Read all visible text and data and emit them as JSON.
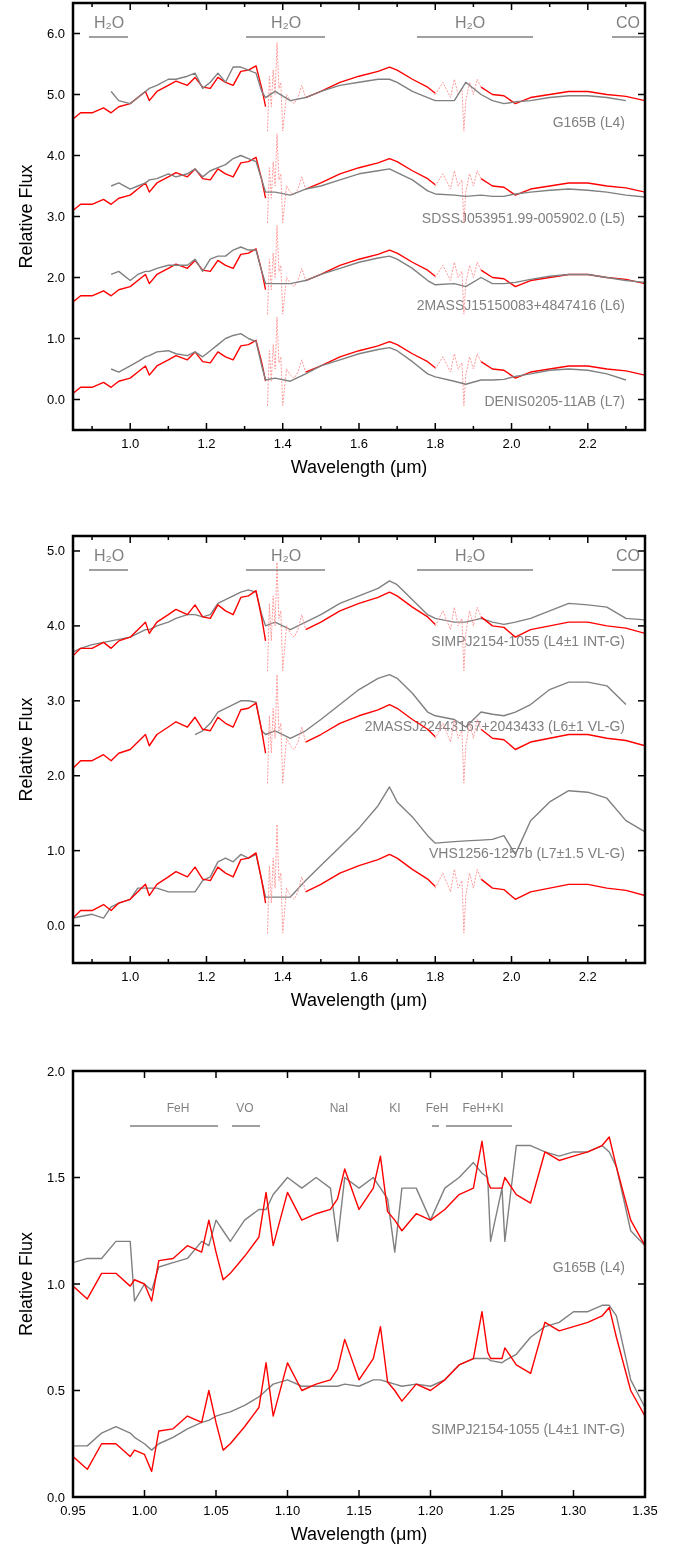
{
  "chart_data": [
    {
      "type": "line",
      "xlabel": "Wavelength (μm)",
      "ylabel": "Relative Flux",
      "xlim": [
        0.85,
        2.35
      ],
      "ylim": [
        -0.5,
        6.5
      ],
      "xticks": [
        {
          "value": 0.9,
          "label": null
        },
        {
          "value": 1.0,
          "label": "1.0"
        },
        {
          "value": 1.1,
          "label": null
        },
        {
          "value": 1.2,
          "label": "1.2"
        },
        {
          "value": 1.3,
          "label": null
        },
        {
          "value": 1.4,
          "label": "1.4"
        },
        {
          "value": 1.5,
          "label": null
        },
        {
          "value": 1.6,
          "label": "1.6"
        },
        {
          "value": 1.7,
          "label": null
        },
        {
          "value": 1.8,
          "label": "1.8"
        },
        {
          "value": 1.9,
          "label": null
        },
        {
          "value": 2.0,
          "label": "2.0"
        },
        {
          "value": 2.1,
          "label": null
        },
        {
          "value": 2.2,
          "label": "2.2"
        },
        {
          "value": 2.3,
          "label": null
        }
      ],
      "yticks": [
        {
          "value": 0,
          "label": "0.0"
        },
        {
          "value": 1,
          "label": "1.0"
        },
        {
          "value": 2,
          "label": "2.0"
        },
        {
          "value": 3,
          "label": "3.0"
        },
        {
          "value": 4,
          "label": "4.0"
        },
        {
          "value": 5,
          "label": "5.0"
        },
        {
          "value": 6,
          "label": "6.0"
        }
      ],
      "annotations": [
        "H₂O",
        "H₂O",
        "H₂O",
        "CO"
      ],
      "x": [
        0.85,
        0.87,
        0.9,
        0.93,
        0.95,
        0.97,
        1.0,
        1.02,
        1.04,
        1.05,
        1.07,
        1.1,
        1.12,
        1.15,
        1.17,
        1.19,
        1.21,
        1.23,
        1.25,
        1.27,
        1.29,
        1.31,
        1.33,
        1.345,
        1.355,
        1.38,
        1.42,
        1.46,
        1.5,
        1.55,
        1.6,
        1.65,
        1.68,
        1.7,
        1.74,
        1.78,
        1.8,
        1.85,
        1.88,
        1.92,
        1.95,
        1.98,
        2.01,
        2.05,
        2.1,
        2.15,
        2.2,
        2.25,
        2.3,
        2.35
      ],
      "series": [
        {
          "color": "#ff0000",
          "values": [
            4.6,
            4.7,
            4.7,
            4.78,
            4.7,
            4.8,
            4.85,
            4.95,
            5.05,
            4.9,
            5.05,
            5.15,
            5.22,
            5.15,
            5.28,
            5.12,
            5.1,
            5.28,
            5.2,
            5.15,
            5.38,
            5.4,
            5.47,
            5.1,
            4.8,
            null,
            null,
            4.95,
            5.05,
            5.2,
            5.3,
            5.38,
            5.45,
            5.4,
            5.25,
            5.12,
            5.02,
            null,
            null,
            5.12,
            5.0,
            4.98,
            4.85,
            4.95,
            5.0,
            5.05,
            5.05,
            5.0,
            4.97,
            4.9
          ]
        },
        {
          "color": "#ff9999",
          "line_style": "dotted",
          "x": [
            1.36,
            1.365,
            1.37,
            1.375,
            1.38,
            1.385,
            1.39,
            1.395,
            1.4,
            1.41,
            1.42,
            1.43,
            1.44,
            1.45,
            1.46,
            1.6,
            1.8,
            1.82,
            1.84,
            1.85,
            1.86,
            1.87,
            1.875,
            1.88,
            1.89,
            1.9,
            1.91,
            1.92
          ],
          "values": [
            4.4,
            5.3,
            4.8,
            5.4,
            5.0,
            5.85,
            5.1,
            5.2,
            4.4,
            5.0,
            4.9,
            4.85,
            4.95,
            5.15,
            4.95,
            null,
            5.0,
            5.2,
            4.95,
            5.25,
            5.0,
            5.1,
            4.4,
            4.9,
            5.2,
            5.0,
            5.25,
            5.12
          ]
        },
        {
          "name": "G165B (L4)",
          "color": "#808080",
          "values": [
            null,
            null,
            null,
            null,
            5.05,
            4.9,
            4.85,
            4.95,
            5.05,
            5.1,
            5.15,
            5.25,
            5.25,
            5.3,
            5.35,
            5.1,
            5.2,
            5.35,
            5.2,
            5.45,
            5.45,
            5.4,
            5.35,
            5.05,
            4.95,
            5.05,
            4.9,
            4.95,
            5.05,
            5.15,
            5.2,
            5.25,
            5.25,
            5.2,
            5.05,
            4.95,
            4.9,
            4.9,
            5.2,
            5.0,
            4.9,
            4.85,
            4.88,
            4.9,
            4.95,
            4.98,
            4.98,
            4.95,
            4.9,
            null
          ]
        },
        {
          "color": "#ff0000",
          "values": [
            3.1,
            3.2,
            3.2,
            3.28,
            3.2,
            3.3,
            3.35,
            3.45,
            3.55,
            3.4,
            3.55,
            3.65,
            3.72,
            3.65,
            3.78,
            3.62,
            3.6,
            3.78,
            3.7,
            3.65,
            3.88,
            3.9,
            3.97,
            3.6,
            3.3,
            null,
            null,
            3.45,
            3.55,
            3.7,
            3.8,
            3.88,
            3.95,
            3.9,
            3.75,
            3.62,
            3.52,
            null,
            null,
            3.62,
            3.5,
            3.48,
            3.35,
            3.45,
            3.5,
            3.55,
            3.55,
            3.5,
            3.47,
            3.4
          ]
        },
        {
          "color": "#ff9999",
          "line_style": "dotted",
          "x": [
            1.36,
            1.365,
            1.37,
            1.375,
            1.38,
            1.385,
            1.39,
            1.395,
            1.4,
            1.41,
            1.42,
            1.43,
            1.44,
            1.45,
            1.46,
            1.6,
            1.8,
            1.82,
            1.84,
            1.85,
            1.86,
            1.87,
            1.875,
            1.88,
            1.89,
            1.9,
            1.91,
            1.92
          ],
          "values": [
            2.9,
            3.8,
            3.3,
            3.9,
            3.5,
            4.35,
            3.6,
            3.7,
            2.9,
            3.5,
            3.4,
            3.35,
            3.45,
            3.65,
            3.45,
            null,
            3.5,
            3.7,
            3.45,
            3.75,
            3.5,
            3.6,
            2.9,
            3.4,
            3.7,
            3.5,
            3.75,
            3.62
          ]
        },
        {
          "name": "SDSSJ053951.99-005902.0 (L5)",
          "color": "#808080",
          "values": [
            null,
            null,
            null,
            null,
            3.5,
            3.55,
            3.45,
            3.5,
            3.55,
            3.6,
            3.62,
            3.7,
            3.65,
            3.7,
            3.78,
            3.65,
            3.75,
            3.8,
            3.85,
            3.95,
            4.0,
            3.95,
            3.9,
            3.6,
            3.4,
            3.4,
            3.35,
            3.45,
            3.5,
            3.6,
            3.7,
            3.75,
            3.78,
            3.72,
            3.6,
            3.42,
            3.37,
            3.35,
            3.33,
            3.35,
            3.33,
            3.33,
            3.37,
            3.4,
            3.43,
            3.45,
            3.43,
            3.4,
            3.35,
            3.32
          ]
        },
        {
          "color": "#ff0000",
          "values": [
            1.6,
            1.7,
            1.7,
            1.78,
            1.7,
            1.8,
            1.85,
            1.95,
            2.05,
            1.9,
            2.05,
            2.15,
            2.22,
            2.15,
            2.28,
            2.12,
            2.1,
            2.28,
            2.2,
            2.15,
            2.38,
            2.4,
            2.47,
            2.1,
            1.8,
            null,
            null,
            1.95,
            2.05,
            2.2,
            2.3,
            2.38,
            2.45,
            2.4,
            2.25,
            2.12,
            2.02,
            null,
            null,
            2.12,
            2.0,
            1.98,
            1.85,
            1.95,
            2.0,
            2.05,
            2.05,
            2.0,
            1.97,
            1.9
          ]
        },
        {
          "color": "#ff9999",
          "line_style": "dotted",
          "x": [
            1.36,
            1.365,
            1.37,
            1.375,
            1.38,
            1.385,
            1.39,
            1.395,
            1.4,
            1.41,
            1.42,
            1.43,
            1.44,
            1.45,
            1.46,
            1.6,
            1.8,
            1.82,
            1.84,
            1.85,
            1.86,
            1.87,
            1.875,
            1.88,
            1.89,
            1.9,
            1.91,
            1.92
          ],
          "values": [
            1.4,
            2.3,
            1.8,
            2.4,
            2.0,
            2.85,
            2.1,
            2.2,
            1.4,
            2.0,
            1.9,
            1.85,
            1.95,
            2.15,
            1.95,
            null,
            2.0,
            2.2,
            1.95,
            2.25,
            2.0,
            2.1,
            1.4,
            1.9,
            2.2,
            2.0,
            2.25,
            2.12
          ]
        },
        {
          "name": "2MASSJ15150083+4847416 (L6)",
          "color": "#808080",
          "values": [
            null,
            null,
            null,
            null,
            2.05,
            2.1,
            1.95,
            2.05,
            2.1,
            2.1,
            2.15,
            2.2,
            2.2,
            2.2,
            2.3,
            2.1,
            2.3,
            2.35,
            2.35,
            2.45,
            2.5,
            2.45,
            2.45,
            2.1,
            1.9,
            1.9,
            1.9,
            1.95,
            2.05,
            2.15,
            2.25,
            2.32,
            2.35,
            2.3,
            2.15,
            1.95,
            1.88,
            1.9,
            1.85,
            2.0,
            1.9,
            1.9,
            1.92,
            1.97,
            2.02,
            2.05,
            2.05,
            2.0,
            1.95,
            1.92
          ]
        },
        {
          "color": "#ff0000",
          "values": [
            0.1,
            0.2,
            0.2,
            0.28,
            0.2,
            0.3,
            0.35,
            0.45,
            0.55,
            0.4,
            0.55,
            0.65,
            0.72,
            0.65,
            0.78,
            0.62,
            0.6,
            0.78,
            0.7,
            0.65,
            0.88,
            0.9,
            0.97,
            0.6,
            0.3,
            null,
            null,
            0.45,
            0.55,
            0.7,
            0.8,
            0.88,
            0.95,
            0.9,
            0.75,
            0.62,
            0.52,
            null,
            null,
            0.62,
            0.5,
            0.48,
            0.35,
            0.45,
            0.5,
            0.55,
            0.55,
            0.5,
            0.47,
            0.4
          ]
        },
        {
          "color": "#ff9999",
          "line_style": "dotted",
          "x": [
            1.36,
            1.365,
            1.37,
            1.375,
            1.38,
            1.385,
            1.39,
            1.395,
            1.4,
            1.41,
            1.42,
            1.43,
            1.44,
            1.45,
            1.46,
            1.6,
            1.8,
            1.82,
            1.84,
            1.85,
            1.86,
            1.87,
            1.875,
            1.88,
            1.89,
            1.9,
            1.91,
            1.92
          ],
          "values": [
            -0.1,
            0.8,
            0.3,
            0.9,
            0.5,
            1.35,
            0.6,
            0.7,
            -0.1,
            0.5,
            0.4,
            0.35,
            0.45,
            0.65,
            0.45,
            null,
            0.5,
            0.7,
            0.45,
            0.75,
            0.5,
            0.6,
            -0.1,
            0.4,
            0.7,
            0.5,
            0.75,
            0.62
          ]
        },
        {
          "name": "DENIS0205-11AB (L7)",
          "color": "#808080",
          "values": [
            null,
            null,
            null,
            null,
            0.5,
            0.45,
            0.55,
            0.62,
            0.7,
            0.72,
            0.78,
            0.8,
            0.75,
            0.72,
            0.78,
            0.7,
            0.8,
            0.9,
            1.0,
            1.05,
            1.08,
            1.0,
            0.95,
            0.55,
            0.32,
            0.35,
            0.3,
            0.42,
            0.55,
            0.65,
            0.75,
            0.82,
            0.85,
            0.8,
            0.62,
            0.42,
            0.37,
            0.3,
            0.25,
            0.32,
            0.32,
            0.33,
            0.38,
            0.42,
            0.48,
            0.5,
            0.48,
            0.42,
            0.32,
            null
          ]
        }
      ]
    },
    {
      "type": "line",
      "xlabel": "Wavelength (μm)",
      "ylabel": "Relative Flux",
      "xlim": [
        0.85,
        2.35
      ],
      "ylim": [
        -0.5,
        5.2
      ],
      "xticks": [
        {
          "value": 0.9,
          "label": null
        },
        {
          "value": 1.0,
          "label": "1.0"
        },
        {
          "value": 1.1,
          "label": null
        },
        {
          "value": 1.2,
          "label": "1.2"
        },
        {
          "value": 1.3,
          "label": null
        },
        {
          "value": 1.4,
          "label": "1.4"
        },
        {
          "value": 1.5,
          "label": null
        },
        {
          "value": 1.6,
          "label": "1.6"
        },
        {
          "value": 1.7,
          "label": null
        },
        {
          "value": 1.8,
          "label": "1.8"
        },
        {
          "value": 1.9,
          "label": null
        },
        {
          "value": 2.0,
          "label": "2.0"
        },
        {
          "value": 2.1,
          "label": null
        },
        {
          "value": 2.2,
          "label": "2.2"
        },
        {
          "value": 2.3,
          "label": null
        }
      ],
      "yticks": [
        {
          "value": 0,
          "label": "0.0"
        },
        {
          "value": 1,
          "label": "1.0"
        },
        {
          "value": 2,
          "label": "2.0"
        },
        {
          "value": 3,
          "label": "3.0"
        },
        {
          "value": 4,
          "label": "4.0"
        },
        {
          "value": 5,
          "label": "5.0"
        }
      ],
      "annotations": [
        "H₂O",
        "H₂O",
        "H₂O",
        "CO"
      ],
      "x": [
        0.85,
        0.87,
        0.9,
        0.93,
        0.95,
        0.97,
        1.0,
        1.02,
        1.04,
        1.05,
        1.07,
        1.1,
        1.12,
        1.15,
        1.17,
        1.19,
        1.21,
        1.23,
        1.25,
        1.27,
        1.29,
        1.31,
        1.33,
        1.345,
        1.355,
        1.38,
        1.42,
        1.46,
        1.5,
        1.55,
        1.6,
        1.65,
        1.68,
        1.7,
        1.74,
        1.78,
        1.8,
        1.85,
        1.88,
        1.92,
        1.95,
        1.98,
        2.01,
        2.05,
        2.1,
        2.15,
        2.2,
        2.25,
        2.3,
        2.35
      ],
      "series": [
        {
          "name": "SIMPJ2154-1055 (L4±1 INT-G)",
          "color": "#808080",
          "values": [
            3.65,
            3.7,
            3.75,
            3.78,
            3.8,
            3.82,
            3.85,
            3.9,
            3.95,
            3.95,
            4.0,
            4.05,
            4.1,
            4.15,
            4.15,
            4.12,
            4.15,
            4.3,
            4.35,
            4.4,
            4.45,
            4.48,
            4.45,
            4.15,
            4.0,
            4.05,
            3.95,
            4.05,
            4.15,
            4.3,
            4.4,
            4.5,
            4.6,
            4.55,
            4.35,
            4.15,
            4.1,
            4.05,
            4.05,
            4.1,
            4.05,
            4.02,
            4.05,
            4.1,
            4.2,
            4.3,
            4.28,
            4.25,
            4.1,
            4.08
          ]
        },
        {
          "color": "#ff0000",
          "values": [
            3.6,
            3.7,
            3.7,
            3.78,
            3.7,
            3.8,
            3.85,
            3.95,
            4.05,
            3.9,
            4.05,
            4.15,
            4.22,
            4.15,
            4.28,
            4.12,
            4.1,
            4.28,
            4.2,
            4.15,
            4.38,
            4.4,
            4.47,
            4.1,
            3.8,
            null,
            null,
            3.95,
            4.05,
            4.2,
            4.3,
            4.38,
            4.45,
            4.4,
            4.25,
            4.12,
            4.02,
            null,
            null,
            4.12,
            4.0,
            3.98,
            3.85,
            3.95,
            4.0,
            4.05,
            4.05,
            4.0,
            3.97,
            3.9
          ]
        },
        {
          "color": "#ff9999",
          "line_style": "dotted",
          "x": [
            1.36,
            1.365,
            1.37,
            1.375,
            1.38,
            1.385,
            1.39,
            1.395,
            1.4,
            1.41,
            1.42,
            1.43,
            1.44,
            1.45,
            1.46,
            1.6,
            1.8,
            1.82,
            1.84,
            1.85,
            1.86,
            1.87,
            1.875,
            1.88,
            1.89,
            1.9,
            1.91,
            1.92
          ],
          "values": [
            3.4,
            4.3,
            3.8,
            4.4,
            4.0,
            4.85,
            4.1,
            4.2,
            3.4,
            4.0,
            3.9,
            3.85,
            3.95,
            4.15,
            3.95,
            null,
            4.0,
            4.2,
            3.95,
            4.25,
            4.0,
            4.1,
            3.4,
            3.9,
            4.2,
            4.0,
            4.25,
            4.12
          ]
        },
        {
          "name": "2MASSJ22443167+2043433 (L6±1 VL-G)",
          "color": "#808080",
          "values": [
            null,
            null,
            null,
            null,
            null,
            null,
            null,
            null,
            null,
            null,
            null,
            null,
            null,
            null,
            2.55,
            2.6,
            2.7,
            2.85,
            2.9,
            2.95,
            3.0,
            3.0,
            2.98,
            2.6,
            2.55,
            2.6,
            2.5,
            2.6,
            2.75,
            2.95,
            3.15,
            3.3,
            3.35,
            3.3,
            3.1,
            2.85,
            2.8,
            2.75,
            2.65,
            2.85,
            2.82,
            2.8,
            2.85,
            2.95,
            3.15,
            3.25,
            3.25,
            3.2,
            2.95,
            null
          ]
        },
        {
          "color": "#ff0000",
          "values": [
            2.1,
            2.2,
            2.2,
            2.28,
            2.2,
            2.3,
            2.35,
            2.45,
            2.55,
            2.4,
            2.55,
            2.65,
            2.72,
            2.65,
            2.78,
            2.62,
            2.6,
            2.78,
            2.7,
            2.65,
            2.88,
            2.9,
            2.97,
            2.6,
            2.3,
            null,
            null,
            2.45,
            2.55,
            2.7,
            2.8,
            2.88,
            2.95,
            2.9,
            2.75,
            2.62,
            2.52,
            null,
            null,
            2.62,
            2.5,
            2.48,
            2.35,
            2.45,
            2.5,
            2.55,
            2.55,
            2.5,
            2.47,
            2.4
          ]
        },
        {
          "color": "#ff9999",
          "line_style": "dotted",
          "x": [
            1.36,
            1.365,
            1.37,
            1.375,
            1.38,
            1.385,
            1.39,
            1.395,
            1.4,
            1.41,
            1.42,
            1.43,
            1.44,
            1.45,
            1.46,
            1.6,
            1.8,
            1.82,
            1.84,
            1.85,
            1.86,
            1.87,
            1.875,
            1.88,
            1.89,
            1.9,
            1.91,
            1.92
          ],
          "values": [
            1.9,
            2.8,
            2.3,
            2.9,
            2.5,
            3.35,
            2.6,
            2.7,
            1.9,
            2.5,
            2.4,
            2.35,
            2.45,
            2.65,
            2.45,
            null,
            2.5,
            2.7,
            2.45,
            2.75,
            2.5,
            2.6,
            1.9,
            2.4,
            2.7,
            2.5,
            2.75,
            2.62
          ]
        },
        {
          "name": "VHS1256-1257b (L7±1.5 VL-G)",
          "color": "#808080",
          "values": [
            0.1,
            0.12,
            0.15,
            0.1,
            0.25,
            0.3,
            0.35,
            0.5,
            0.5,
            0.5,
            0.5,
            0.45,
            0.45,
            0.45,
            0.45,
            0.6,
            0.65,
            0.85,
            0.9,
            0.85,
            0.95,
            0.9,
            0.95,
            0.6,
            0.38,
            0.38,
            0.38,
            0.6,
            0.8,
            1.05,
            1.3,
            1.6,
            1.85,
            1.65,
            1.45,
            1.2,
            1.1,
            1.12,
            1.13,
            1.14,
            1.15,
            1.2,
            0.95,
            1.4,
            1.65,
            1.8,
            1.78,
            1.7,
            1.4,
            1.25
          ]
        },
        {
          "color": "#ff0000",
          "values": [
            0.1,
            0.2,
            0.2,
            0.28,
            0.2,
            0.3,
            0.35,
            0.45,
            0.55,
            0.4,
            0.55,
            0.65,
            0.72,
            0.65,
            0.78,
            0.62,
            0.6,
            0.78,
            0.7,
            0.65,
            0.88,
            0.9,
            0.97,
            0.6,
            0.3,
            null,
            null,
            0.45,
            0.55,
            0.7,
            0.8,
            0.88,
            0.95,
            0.9,
            0.75,
            0.62,
            0.52,
            null,
            null,
            0.62,
            0.5,
            0.48,
            0.35,
            0.45,
            0.5,
            0.55,
            0.55,
            0.5,
            0.47,
            0.4
          ]
        },
        {
          "color": "#ff9999",
          "line_style": "dotted",
          "x": [
            1.36,
            1.365,
            1.37,
            1.375,
            1.38,
            1.385,
            1.39,
            1.395,
            1.4,
            1.41,
            1.42,
            1.43,
            1.44,
            1.45,
            1.46,
            1.6,
            1.8,
            1.82,
            1.84,
            1.85,
            1.86,
            1.87,
            1.875,
            1.88,
            1.89,
            1.9,
            1.91,
            1.92
          ],
          "values": [
            -0.1,
            0.8,
            0.3,
            0.9,
            0.5,
            1.35,
            0.6,
            0.7,
            -0.1,
            0.5,
            0.4,
            0.35,
            0.45,
            0.65,
            0.45,
            null,
            0.5,
            0.7,
            0.45,
            0.75,
            0.5,
            0.6,
            -0.1,
            0.4,
            0.7,
            0.5,
            0.75,
            0.62
          ]
        }
      ]
    },
    {
      "type": "line",
      "xlabel": "Wavelength (μm)",
      "ylabel": "Relative Flux",
      "xlim": [
        0.95,
        1.35
      ],
      "ylim": [
        0,
        2
      ],
      "xticks": [
        {
          "value": 0.95,
          "label": "0.95"
        },
        {
          "value": 1.0,
          "label": "1.00"
        },
        {
          "value": 1.05,
          "label": "1.05"
        },
        {
          "value": 1.1,
          "label": "1.10"
        },
        {
          "value": 1.15,
          "label": "1.15"
        },
        {
          "value": 1.2,
          "label": "1.20"
        },
        {
          "value": 1.25,
          "label": "1.25"
        },
        {
          "value": 1.3,
          "label": "1.30"
        },
        {
          "value": 1.35,
          "label": "1.35"
        }
      ],
      "yticks": [
        {
          "value": 0,
          "label": "0.0"
        },
        {
          "value": 0.5,
          "label": "0.5"
        },
        {
          "value": 1,
          "label": "1.0"
        },
        {
          "value": 1.5,
          "label": "1.5"
        },
        {
          "value": 2,
          "label": "2.0"
        }
      ],
      "annotations": [
        "FeH",
        "VO",
        "NaI",
        "KI",
        "FeH",
        "FeH+KI"
      ],
      "x": [
        0.95,
        0.96,
        0.97,
        0.98,
        0.99,
        0.993,
        1.0,
        1.005,
        1.01,
        1.02,
        1.03,
        1.04,
        1.045,
        1.05,
        1.055,
        1.06,
        1.07,
        1.08,
        1.085,
        1.09,
        1.1,
        1.11,
        1.12,
        1.13,
        1.135,
        1.14,
        1.15,
        1.16,
        1.165,
        1.17,
        1.175,
        1.18,
        1.19,
        1.2,
        1.21,
        1.22,
        1.23,
        1.236,
        1.24,
        1.242,
        1.25,
        1.252,
        1.26,
        1.27,
        1.28,
        1.29,
        1.3,
        1.31,
        1.32,
        1.325,
        1.33,
        1.34,
        1.35
      ],
      "series": [
        {
          "name": "G165B (L4)",
          "color": "#808080",
          "values": [
            1.1,
            1.12,
            1.12,
            1.2,
            1.2,
            0.92,
            1.0,
            0.97,
            1.08,
            1.1,
            1.12,
            1.2,
            1.18,
            1.3,
            1.25,
            1.2,
            1.3,
            1.35,
            1.35,
            1.42,
            1.5,
            1.45,
            1.5,
            1.45,
            1.2,
            1.5,
            1.45,
            1.5,
            1.45,
            1.4,
            1.15,
            1.45,
            1.45,
            1.3,
            1.45,
            1.5,
            1.57,
            1.52,
            1.5,
            1.2,
            1.45,
            1.2,
            1.65,
            1.65,
            1.62,
            1.6,
            1.62,
            1.62,
            1.65,
            1.62,
            1.55,
            1.25,
            1.18
          ]
        },
        {
          "color": "#ff0000",
          "values": [
            0.99,
            0.93,
            1.05,
            1.05,
            0.99,
            1.02,
            1.0,
            0.92,
            1.11,
            1.12,
            1.18,
            1.15,
            1.3,
            1.15,
            1.02,
            1.05,
            1.13,
            1.22,
            1.43,
            1.18,
            1.43,
            1.3,
            1.33,
            1.35,
            1.4,
            1.54,
            1.35,
            1.45,
            1.6,
            1.34,
            1.3,
            1.25,
            1.33,
            1.3,
            1.35,
            1.42,
            1.45,
            1.67,
            1.48,
            1.45,
            1.45,
            1.5,
            1.42,
            1.38,
            1.62,
            1.58,
            1.6,
            1.62,
            1.65,
            1.69,
            1.55,
            1.3,
            1.18
          ]
        },
        {
          "name": "SIMPJ2154-1055 (L4±1 INT-G)",
          "color": "#808080",
          "values": [
            0.24,
            0.24,
            0.3,
            0.33,
            0.3,
            0.28,
            0.25,
            0.22,
            0.25,
            0.28,
            0.32,
            0.35,
            0.36,
            0.38,
            0.39,
            0.4,
            0.43,
            0.47,
            0.5,
            0.53,
            0.55,
            0.52,
            0.52,
            0.52,
            0.52,
            0.53,
            0.52,
            0.55,
            0.55,
            0.54,
            0.53,
            0.52,
            0.53,
            0.52,
            0.55,
            0.62,
            0.65,
            0.65,
            0.65,
            0.64,
            0.63,
            0.64,
            0.67,
            0.75,
            0.8,
            0.82,
            0.87,
            0.87,
            0.9,
            0.9,
            0.85,
            0.55,
            0.42
          ]
        },
        {
          "color": "#ff0000",
          "values": [
            0.19,
            0.13,
            0.25,
            0.25,
            0.19,
            0.22,
            0.2,
            0.12,
            0.31,
            0.32,
            0.38,
            0.35,
            0.5,
            0.35,
            0.22,
            0.25,
            0.33,
            0.42,
            0.63,
            0.38,
            0.63,
            0.5,
            0.53,
            0.55,
            0.6,
            0.74,
            0.55,
            0.65,
            0.8,
            0.54,
            0.5,
            0.45,
            0.53,
            0.5,
            0.55,
            0.62,
            0.65,
            0.87,
            0.68,
            0.65,
            0.65,
            0.7,
            0.62,
            0.58,
            0.82,
            0.78,
            0.8,
            0.82,
            0.85,
            0.89,
            0.75,
            0.5,
            0.38
          ]
        }
      ]
    }
  ]
}
